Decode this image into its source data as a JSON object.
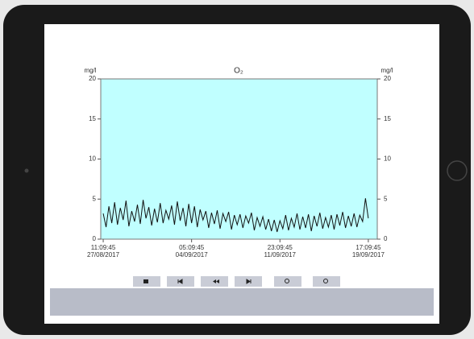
{
  "chart_data": {
    "type": "line",
    "title": "O₂",
    "y_label": "mg/l",
    "y2_label": "mg/l",
    "x": [
      "2017-08-27T11:09:45",
      "2017-08-27T17:09:45",
      "2017-08-27T23:09:45",
      "2017-08-28T05:09:45",
      "2017-08-28T11:09:45",
      "2017-08-28T17:09:45",
      "2017-08-28T23:09:45",
      "2017-08-29T05:09:45",
      "2017-08-29T11:09:45",
      "2017-08-29T17:09:45",
      "2017-08-29T23:09:45",
      "2017-08-30T05:09:45",
      "2017-08-30T11:09:45",
      "2017-08-30T17:09:45",
      "2017-08-30T23:09:45",
      "2017-08-31T05:09:45",
      "2017-08-31T11:09:45",
      "2017-08-31T17:09:45",
      "2017-08-31T23:09:45",
      "2017-09-01T05:09:45",
      "2017-09-01T11:09:45",
      "2017-09-01T17:09:45",
      "2017-09-01T23:09:45",
      "2017-09-02T05:09:45",
      "2017-09-02T11:09:45",
      "2017-09-02T17:09:45",
      "2017-09-02T23:09:45",
      "2017-09-03T05:09:45",
      "2017-09-03T11:09:45",
      "2017-09-03T17:09:45",
      "2017-09-03T23:09:45",
      "2017-09-04T05:09:45",
      "2017-09-04T11:09:45",
      "2017-09-04T17:09:45",
      "2017-09-04T23:09:45",
      "2017-09-05T05:09:45",
      "2017-09-05T11:09:45",
      "2017-09-05T17:09:45",
      "2017-09-05T23:09:45",
      "2017-09-06T05:09:45",
      "2017-09-06T11:09:45",
      "2017-09-06T17:09:45",
      "2017-09-06T23:09:45",
      "2017-09-07T05:09:45",
      "2017-09-07T11:09:45",
      "2017-09-07T17:09:45",
      "2017-09-07T23:09:45",
      "2017-09-08T05:09:45",
      "2017-09-08T11:09:45",
      "2017-09-08T17:09:45",
      "2017-09-08T23:09:45",
      "2017-09-09T05:09:45",
      "2017-09-09T11:09:45",
      "2017-09-09T17:09:45",
      "2017-09-09T23:09:45",
      "2017-09-10T05:09:45",
      "2017-09-10T11:09:45",
      "2017-09-10T17:09:45",
      "2017-09-10T23:09:45",
      "2017-09-11T05:09:45",
      "2017-09-11T11:09:45",
      "2017-09-11T17:09:45",
      "2017-09-11T23:09:45",
      "2017-09-12T05:09:45",
      "2017-09-12T11:09:45",
      "2017-09-12T17:09:45",
      "2017-09-12T23:09:45",
      "2017-09-13T05:09:45",
      "2017-09-13T11:09:45",
      "2017-09-13T17:09:45",
      "2017-09-13T23:09:45",
      "2017-09-14T05:09:45",
      "2017-09-14T11:09:45",
      "2017-09-14T17:09:45",
      "2017-09-14T23:09:45",
      "2017-09-15T05:09:45",
      "2017-09-15T11:09:45",
      "2017-09-15T17:09:45",
      "2017-09-15T23:09:45",
      "2017-09-16T05:09:45",
      "2017-09-16T11:09:45",
      "2017-09-16T17:09:45",
      "2017-09-16T23:09:45",
      "2017-09-17T05:09:45",
      "2017-09-17T11:09:45",
      "2017-09-17T17:09:45",
      "2017-09-17T23:09:45",
      "2017-09-18T05:09:45",
      "2017-09-18T11:09:45",
      "2017-09-18T17:09:45",
      "2017-09-18T23:09:45",
      "2017-09-19T05:09:45",
      "2017-09-19T11:09:45",
      "2017-09-19T17:09:45"
    ],
    "values": [
      3.2,
      1.5,
      4.1,
      2.0,
      4.6,
      1.8,
      3.9,
      2.4,
      4.8,
      1.6,
      3.5,
      2.2,
      4.3,
      1.9,
      4.9,
      2.6,
      4.0,
      1.7,
      3.8,
      2.1,
      4.5,
      2.0,
      3.6,
      2.5,
      4.2,
      1.8,
      4.7,
      2.3,
      3.9,
      1.6,
      4.4,
      2.0,
      4.1,
      1.5,
      3.7,
      2.4,
      3.5,
      1.4,
      3.3,
      1.9,
      3.6,
      1.3,
      3.2,
      2.2,
      3.4,
      1.2,
      3.0,
      1.8,
      3.1,
      1.4,
      2.9,
      2.0,
      3.3,
      1.1,
      2.7,
      1.6,
      2.8,
      1.2,
      2.5,
      1.0,
      2.4,
      0.9,
      2.3,
      1.3,
      3.0,
      1.1,
      2.6,
      1.5,
      3.2,
      1.2,
      2.8,
      1.4,
      3.1,
      1.0,
      2.9,
      1.6,
      3.3,
      1.3,
      2.7,
      1.5,
      3.0,
      1.2,
      3.1,
      1.7,
      3.4,
      1.4,
      2.9,
      1.6,
      3.2,
      1.5,
      3.0,
      2.2,
      5.1,
      2.6
    ],
    "color": "#111111",
    "background": "#c0ffff",
    "xlim": [
      "2017-08-27T06:00:00",
      "2017-09-20T12:00:00"
    ],
    "xticks": [
      {
        "value": "2017-08-27T11:09:45",
        "label": [
          "11:09:45",
          "27/08/2017"
        ]
      },
      {
        "value": "2017-09-04T05:09:45",
        "label": [
          "05:09:45",
          "04/09/2017"
        ]
      },
      {
        "value": "2017-09-11T23:09:45",
        "label": [
          "23:09:45",
          "11/09/2017"
        ]
      },
      {
        "value": "2017-09-19T17:09:45",
        "label": [
          "17:09:45",
          "19/09/2017"
        ]
      }
    ],
    "ylim": [
      0,
      20
    ],
    "yticks": [
      0,
      5,
      10,
      15,
      20
    ],
    "y2lim": [
      0,
      20
    ],
    "y2ticks": [
      0,
      5,
      10,
      15,
      20
    ]
  }
}
